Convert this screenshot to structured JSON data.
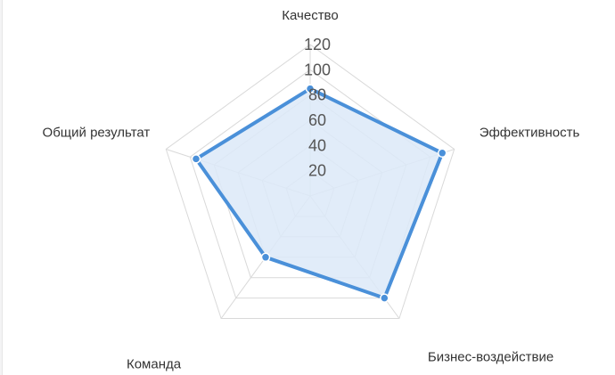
{
  "chart_data": {
    "type": "radar",
    "title": "",
    "axes": [
      "Качество",
      "Эффективность",
      "Бизнес-воздействие",
      "Команда",
      "Общий результат"
    ],
    "ticks": [
      20,
      40,
      60,
      80,
      100,
      120
    ],
    "tick_labels": [
      "20",
      "40",
      "60",
      "80",
      "100",
      "120"
    ],
    "rmax": 120,
    "grid": true,
    "series": [
      {
        "values": [
          85,
          110,
          100,
          60,
          95
        ],
        "color": "#4a90d9",
        "fill": "#dce9f8"
      }
    ],
    "grid_color": "#d9d9d9"
  }
}
